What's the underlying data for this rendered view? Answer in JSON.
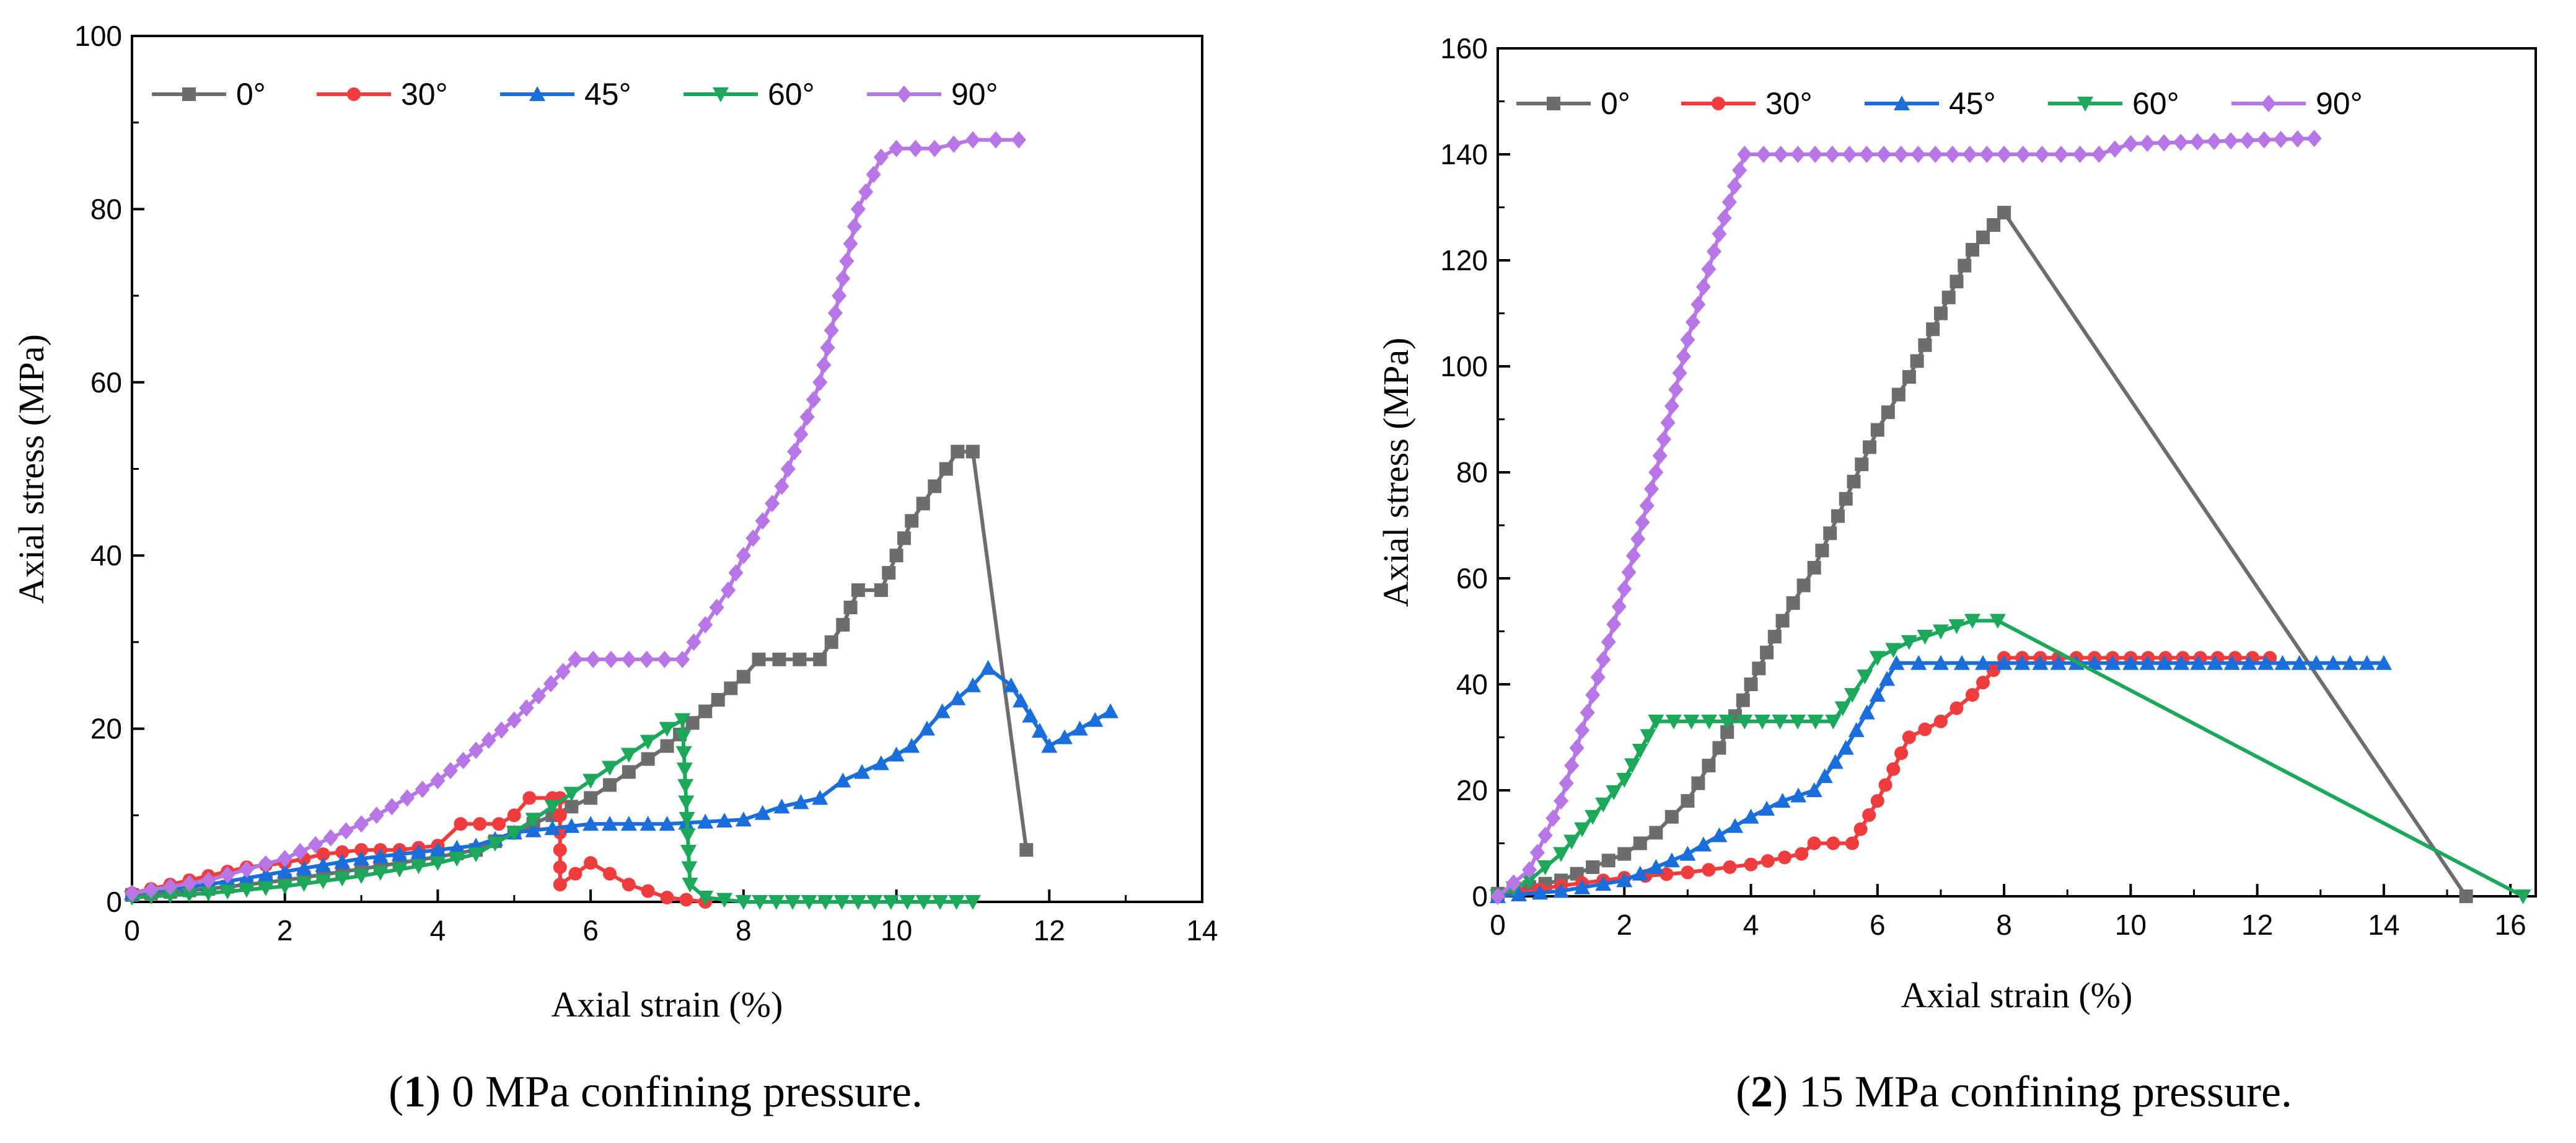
{
  "chart_data": [
    {
      "type": "line",
      "caption_number": "1",
      "caption_text": ") 0 MPa confining pressure.",
      "xlabel": "Axial strain (%)",
      "ylabel": "Axial stress (MPa)",
      "xlim": [
        0,
        14
      ],
      "ylim": [
        0,
        100
      ],
      "xticks": [
        "0",
        "2",
        "4",
        "6",
        "8",
        "10",
        "12",
        "14"
      ],
      "yticks": [
        "0",
        "20",
        "40",
        "60",
        "80",
        "100"
      ],
      "legend_position": "top-left",
      "series": [
        {
          "name": "0°",
          "color": "#6d6d6d",
          "marker": "square",
          "points": [
            [
              0,
              0.8
            ],
            [
              1,
              1.5
            ],
            [
              2,
              2.5
            ],
            [
              3,
              3.8
            ],
            [
              4,
              5.2
            ],
            [
              4.5,
              6
            ],
            [
              5,
              8
            ],
            [
              5.5,
              10
            ],
            [
              6,
              12
            ],
            [
              6.5,
              15
            ],
            [
              7,
              18
            ],
            [
              7.5,
              22
            ],
            [
              8,
              26
            ],
            [
              8.2,
              28
            ],
            [
              9,
              28
            ],
            [
              9.3,
              32
            ],
            [
              9.5,
              36
            ],
            [
              9.8,
              36
            ],
            [
              10,
              40
            ],
            [
              10.2,
              44
            ],
            [
              10.5,
              48
            ],
            [
              10.8,
              52
            ],
            [
              11,
              52
            ],
            [
              11.7,
              6
            ]
          ]
        },
        {
          "name": "30°",
          "color": "#f03c3c",
          "marker": "circle",
          "points": [
            [
              0,
              1
            ],
            [
              0.5,
              2
            ],
            [
              1,
              3
            ],
            [
              1.5,
              4
            ],
            [
              2,
              4.5
            ],
            [
              2.5,
              5.5
            ],
            [
              3,
              6
            ],
            [
              3.5,
              6
            ],
            [
              4,
              6.5
            ],
            [
              4.3,
              9
            ],
            [
              4.8,
              9
            ],
            [
              5,
              10
            ],
            [
              5.2,
              12
            ],
            [
              5.5,
              12
            ],
            [
              5.6,
              12
            ],
            [
              5.6,
              2
            ],
            [
              6,
              4.5
            ],
            [
              6.5,
              2
            ],
            [
              7,
              0.5
            ],
            [
              7.5,
              0
            ]
          ]
        },
        {
          "name": "45°",
          "color": "#1a6edc",
          "marker": "triangle-up",
          "points": [
            [
              0,
              1
            ],
            [
              1,
              2
            ],
            [
              2,
              3.5
            ],
            [
              3,
              5
            ],
            [
              4,
              6
            ],
            [
              4.5,
              6.5
            ],
            [
              5,
              8
            ],
            [
              6,
              9
            ],
            [
              7,
              9
            ],
            [
              8,
              9.5
            ],
            [
              8.5,
              11
            ],
            [
              9,
              12
            ],
            [
              9.3,
              14
            ],
            [
              9.8,
              16
            ],
            [
              10.2,
              18
            ],
            [
              10.6,
              22
            ],
            [
              11,
              25
            ],
            [
              11.2,
              27
            ],
            [
              11.5,
              25
            ],
            [
              12,
              18
            ],
            [
              12.8,
              22
            ]
          ]
        },
        {
          "name": "60°",
          "color": "#1ba85a",
          "marker": "triangle-down",
          "points": [
            [
              0,
              0.5
            ],
            [
              1,
              1
            ],
            [
              2,
              1.8
            ],
            [
              3,
              3
            ],
            [
              4,
              4.5
            ],
            [
              4.5,
              5.5
            ],
            [
              5,
              8
            ],
            [
              5.5,
              11
            ],
            [
              6,
              14
            ],
            [
              6.5,
              17
            ],
            [
              7,
              20
            ],
            [
              7.2,
              21
            ],
            [
              7.3,
              2
            ],
            [
              7.5,
              0.5
            ],
            [
              8,
              0
            ],
            [
              11,
              0
            ]
          ]
        },
        {
          "name": "90°",
          "color": "#b676e6",
          "marker": "diamond",
          "points": [
            [
              0,
              1
            ],
            [
              1,
              2.5
            ],
            [
              2,
              5
            ],
            [
              3,
              9
            ],
            [
              4,
              14
            ],
            [
              5,
              21
            ],
            [
              5.8,
              28
            ],
            [
              7.2,
              28
            ],
            [
              7.5,
              32
            ],
            [
              7.8,
              36
            ],
            [
              8,
              40
            ],
            [
              8.5,
              48
            ],
            [
              9,
              60
            ],
            [
              9.2,
              68
            ],
            [
              9.5,
              80
            ],
            [
              9.8,
              86
            ],
            [
              10,
              87
            ],
            [
              10.5,
              87
            ],
            [
              11,
              88
            ],
            [
              11.6,
              88
            ]
          ]
        }
      ]
    },
    {
      "type": "line",
      "caption_number": "2",
      "caption_text": ") 15 MPa confining pressure.",
      "xlabel": "Axial strain (%)",
      "ylabel": "Axial stress (MPa)",
      "xlim": [
        0,
        16.4
      ],
      "ylim": [
        0,
        160
      ],
      "xticks": [
        "0",
        "2",
        "4",
        "6",
        "8",
        "10",
        "12",
        "14",
        "16"
      ],
      "yticks": [
        "0",
        "20",
        "40",
        "60",
        "80",
        "100",
        "120",
        "140",
        "160"
      ],
      "legend_position": "top-left",
      "series": [
        {
          "name": "0°",
          "color": "#6d6d6d",
          "marker": "square",
          "points": [
            [
              0,
              0.5
            ],
            [
              1,
              3
            ],
            [
              2,
              8
            ],
            [
              2.5,
              12
            ],
            [
              3,
              18
            ],
            [
              3.5,
              28
            ],
            [
              4,
              40
            ],
            [
              4.5,
              52
            ],
            [
              5,
              62
            ],
            [
              5.5,
              75
            ],
            [
              6,
              88
            ],
            [
              6.5,
              98
            ],
            [
              7,
              110
            ],
            [
              7.5,
              122
            ],
            [
              8,
              129
            ],
            [
              15.3,
              0
            ]
          ]
        },
        {
          "name": "30°",
          "color": "#f03c3c",
          "marker": "circle",
          "points": [
            [
              0,
              0
            ],
            [
              1,
              2
            ],
            [
              2,
              3.5
            ],
            [
              3,
              4.5
            ],
            [
              4,
              6
            ],
            [
              4.8,
              8
            ],
            [
              5,
              10
            ],
            [
              5.6,
              10
            ],
            [
              6,
              18
            ],
            [
              6.5,
              30
            ],
            [
              7,
              33
            ],
            [
              7.5,
              38
            ],
            [
              8,
              45
            ],
            [
              10,
              45
            ],
            [
              12.2,
              45
            ]
          ]
        },
        {
          "name": "45°",
          "color": "#1a6edc",
          "marker": "triangle-up",
          "points": [
            [
              0,
              0
            ],
            [
              1,
              1
            ],
            [
              2,
              3
            ],
            [
              3,
              8
            ],
            [
              4,
              15
            ],
            [
              4.5,
              18
            ],
            [
              5,
              20
            ],
            [
              5.5,
              28
            ],
            [
              6,
              38
            ],
            [
              6.3,
              44
            ],
            [
              7,
              44
            ],
            [
              8,
              44
            ],
            [
              10,
              44
            ],
            [
              14,
              44
            ]
          ]
        },
        {
          "name": "60°",
          "color": "#1ba85a",
          "marker": "triangle-down",
          "points": [
            [
              0,
              0
            ],
            [
              0.5,
              3
            ],
            [
              1,
              8
            ],
            [
              1.5,
              15
            ],
            [
              2,
              22
            ],
            [
              2.5,
              33
            ],
            [
              5.3,
              33
            ],
            [
              5.6,
              38
            ],
            [
              6,
              45
            ],
            [
              6.5,
              48
            ],
            [
              7.5,
              52
            ],
            [
              7.9,
              52
            ],
            [
              16.2,
              0
            ]
          ]
        },
        {
          "name": "90°",
          "color": "#b676e6",
          "marker": "diamond",
          "points": [
            [
              0,
              0
            ],
            [
              0.5,
              5
            ],
            [
              1,
              18
            ],
            [
              1.5,
              38
            ],
            [
              2,
              58
            ],
            [
              2.5,
              80
            ],
            [
              3,
              105
            ],
            [
              3.5,
              125
            ],
            [
              3.9,
              140
            ],
            [
              4.2,
              140
            ],
            [
              8,
              140
            ],
            [
              9.5,
              140
            ],
            [
              10,
              142
            ],
            [
              12.9,
              143
            ]
          ]
        }
      ]
    }
  ]
}
